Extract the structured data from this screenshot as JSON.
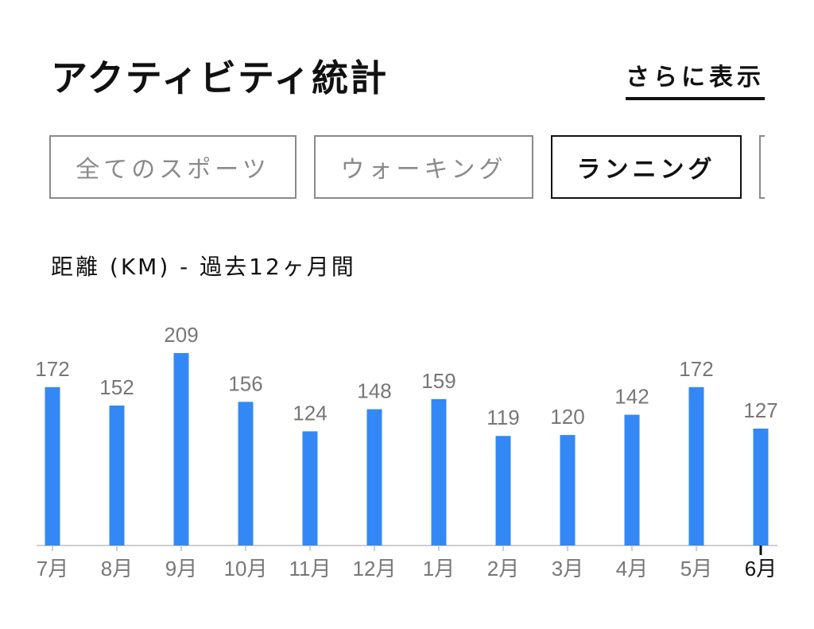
{
  "header": {
    "title": "アクティビティ統計",
    "more_link": "さらに表示"
  },
  "tabs": [
    {
      "label": "全てのスポーツ",
      "selected": false
    },
    {
      "label": "ウォーキング",
      "selected": false
    },
    {
      "label": "ランニング",
      "selected": true
    },
    {
      "label": "",
      "selected": false
    }
  ],
  "chart_subtitle": "距離 (KM) - 過去12ヶ月間",
  "colors": {
    "bar": "#3388f6",
    "axis": "#cfcfcf",
    "label": "#777777",
    "selected": "#111111"
  },
  "chart_data": {
    "type": "bar",
    "categories": [
      "7月",
      "8月",
      "9月",
      "10月",
      "11月",
      "12月",
      "1月",
      "2月",
      "3月",
      "4月",
      "5月",
      "6月"
    ],
    "values": [
      172,
      152,
      209,
      156,
      124,
      148,
      159,
      119,
      120,
      142,
      172,
      127
    ],
    "selected_category": "6月",
    "title": "",
    "xlabel": "",
    "ylabel": "",
    "ylim": [
      0,
      209
    ],
    "grid": false,
    "legend": "none"
  }
}
